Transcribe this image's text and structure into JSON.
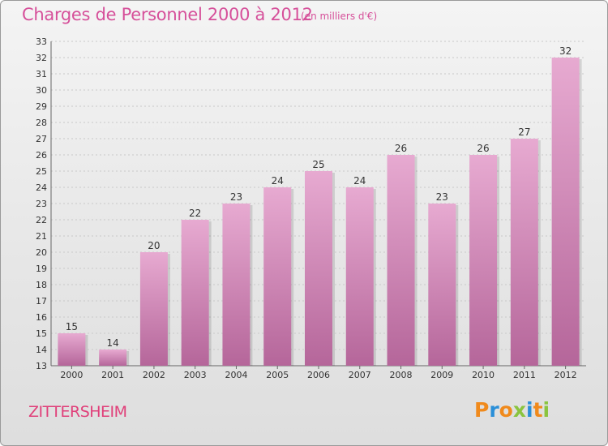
{
  "header": {
    "title": "Charges de Personnel 2000 à 2012",
    "subtitle": "(en milliers d'€)"
  },
  "footer": {
    "city": "ZITTERSHEIM",
    "logo_text": "Proxiti"
  },
  "colors": {
    "title": "#d6509a",
    "bar_top": "#e6a7cf",
    "bar_bottom": "#b8689b",
    "city": "#e0407a"
  },
  "chart_data": {
    "type": "bar",
    "categories": [
      "2000",
      "2001",
      "2002",
      "2003",
      "2004",
      "2005",
      "2006",
      "2007",
      "2008",
      "2009",
      "2010",
      "2011",
      "2012"
    ],
    "values": [
      15,
      14,
      20,
      22,
      23,
      24,
      25,
      24,
      26,
      23,
      26,
      27,
      32
    ],
    "ylim": [
      13,
      33
    ],
    "yticks": [
      13,
      14,
      15,
      16,
      17,
      18,
      19,
      20,
      21,
      22,
      23,
      24,
      25,
      26,
      27,
      28,
      29,
      30,
      31,
      32,
      33
    ],
    "grid": true,
    "data_labels": true
  }
}
